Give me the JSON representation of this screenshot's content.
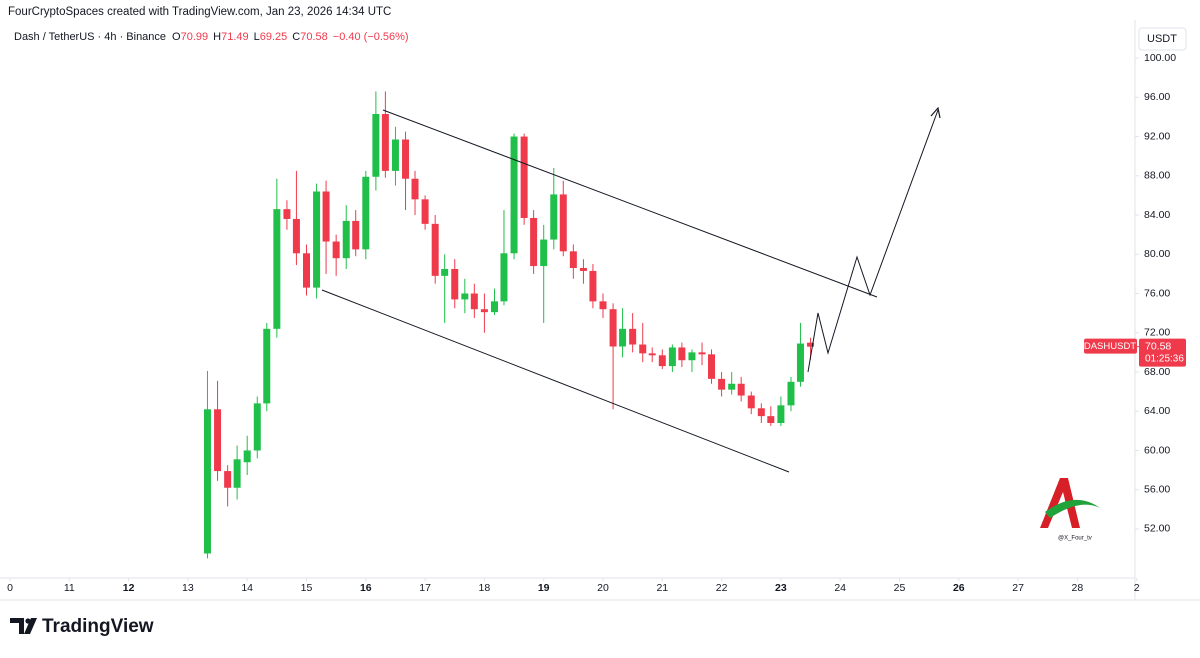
{
  "chart_data": {
    "type": "candlestick",
    "header": "FourCryptoSpaces created with TradingView.com, Jan 23, 2026 14:34 UTC",
    "symbol_title": "Dash / TetherUS · 4h · Binance",
    "legend": {
      "open_label": "O",
      "open": 70.99,
      "high_label": "H",
      "high": 71.49,
      "low_label": "L",
      "low": 69.25,
      "close_label": "C",
      "close": 70.58,
      "change": "−0.40 (−0.56%)"
    },
    "currency": "USDT",
    "symbol": "DASHUSDT",
    "last_price": 70.58,
    "countdown": "01:25:36",
    "watermark": "@X_Four_tv",
    "brand": "TradingView",
    "up_color": "#1fbf4a",
    "down_color": "#ef3a4c",
    "grid": false,
    "x": [
      13.33,
      13.5,
      13.67,
      13.83,
      14,
      14.17,
      14.33,
      14.5,
      14.67,
      14.83,
      15,
      15.17,
      15.33,
      15.5,
      15.67,
      15.83,
      16,
      16.17,
      16.33,
      16.5,
      16.67,
      16.83,
      17,
      17.17,
      17.33,
      17.5,
      17.67,
      17.83,
      18,
      18.17,
      18.33,
      18.5,
      18.67,
      18.83,
      19,
      19.17,
      19.33,
      19.5,
      19.67,
      19.83,
      20,
      20.17,
      20.33,
      20.5,
      20.67,
      20.83,
      21,
      21.17,
      21.33,
      21.5,
      21.67,
      21.83,
      22,
      22.17,
      22.33,
      22.5,
      22.67,
      22.83,
      23,
      23.17,
      23.33,
      23.5
    ],
    "open": [
      49.5,
      64.2,
      57.9,
      56.2,
      58.8,
      60.0,
      64.8,
      72.4,
      84.6,
      83.6,
      80.1,
      76.6,
      86.4,
      81.3,
      79.6,
      83.4,
      80.5,
      87.9,
      94.3,
      88.5,
      91.7,
      87.7,
      85.6,
      83.1,
      77.8,
      78.5,
      75.4,
      76.0,
      74.4,
      74.1,
      75.2,
      80.1,
      92.0,
      83.7,
      78.8,
      81.5,
      86.1,
      80.3,
      78.6,
      78.3,
      75.2,
      74.4,
      70.6,
      72.4,
      70.8,
      69.9,
      69.7,
      68.6,
      70.5,
      69.2,
      70.0,
      69.8,
      67.3,
      66.2,
      66.8,
      65.6,
      64.3,
      63.5,
      62.8,
      64.6,
      67.0,
      70.99
    ],
    "high": [
      68.1,
      67.1,
      58.5,
      60.5,
      61.5,
      65.5,
      73.0,
      87.7,
      85.5,
      88.5,
      81.0,
      87.2,
      87.5,
      82.0,
      85.0,
      84.5,
      88.5,
      96.6,
      96.6,
      93.0,
      92.5,
      88.5,
      86.0,
      84.0,
      80.0,
      79.5,
      77.5,
      77.0,
      76.0,
      76.5,
      84.5,
      92.3,
      92.3,
      84.5,
      83.0,
      88.8,
      87.5,
      81.0,
      79.5,
      79.0,
      76.0,
      75.0,
      74.5,
      74.0,
      73.0,
      70.5,
      70.3,
      70.8,
      71.0,
      70.3,
      71.0,
      70.3,
      68.0,
      68.0,
      67.5,
      66.0,
      64.8,
      64.5,
      65.5,
      67.5,
      73.0,
      71.49
    ],
    "low": [
      49.0,
      56.9,
      54.3,
      55.0,
      57.5,
      59.2,
      64.0,
      71.5,
      82.5,
      78.9,
      75.8,
      75.5,
      78.0,
      77.8,
      78.5,
      79.8,
      79.5,
      86.5,
      87.8,
      87.0,
      84.5,
      84.0,
      82.5,
      77.0,
      73.0,
      74.5,
      74.0,
      73.5,
      72.0,
      73.8,
      74.8,
      79.5,
      83.0,
      78.0,
      73.0,
      80.5,
      79.8,
      77.5,
      77.0,
      74.5,
      73.5,
      64.2,
      69.5,
      70.0,
      69.0,
      69.0,
      68.3,
      68.0,
      68.5,
      68.0,
      68.7,
      66.8,
      65.5,
      65.7,
      65.0,
      63.7,
      62.8,
      62.5,
      62.5,
      64.0,
      66.5,
      69.25
    ],
    "close": [
      64.2,
      57.9,
      56.2,
      59.1,
      60.0,
      64.8,
      72.4,
      84.6,
      83.6,
      80.1,
      76.6,
      86.4,
      81.3,
      79.6,
      83.4,
      80.5,
      87.9,
      94.3,
      88.5,
      91.7,
      87.7,
      85.6,
      83.1,
      77.8,
      78.5,
      75.4,
      76.0,
      74.4,
      74.1,
      75.2,
      80.1,
      92.0,
      83.7,
      78.8,
      81.5,
      86.1,
      80.3,
      78.6,
      78.3,
      75.2,
      74.4,
      70.6,
      72.4,
      70.8,
      69.9,
      69.7,
      68.6,
      70.5,
      69.2,
      70.0,
      69.8,
      67.3,
      66.2,
      66.8,
      65.6,
      64.3,
      63.5,
      62.8,
      64.6,
      67.0,
      70.9,
      70.58
    ],
    "xlim": [
      10,
      29
    ],
    "xticks": [
      {
        "value": 10,
        "label": "0"
      },
      11,
      12,
      13,
      14,
      15,
      16,
      17,
      18,
      19,
      20,
      21,
      22,
      23,
      24,
      25,
      26,
      27,
      28,
      {
        "value": 29,
        "label": "2"
      }
    ],
    "ylim": [
      47.0,
      105.2
    ],
    "yticks": [
      {
        "value": 52,
        "label": "52.00"
      },
      {
        "value": 56,
        "label": "56.00"
      },
      {
        "value": 60,
        "label": "60.00"
      },
      {
        "value": 64,
        "label": "64.00"
      },
      {
        "value": 68,
        "label": "68.00"
      },
      {
        "value": 72,
        "label": "72.00"
      },
      {
        "value": 76,
        "label": "76.00"
      },
      {
        "value": 80,
        "label": "80.00"
      },
      {
        "value": 84,
        "label": "84.00"
      },
      {
        "value": 88,
        "label": "88.00"
      },
      {
        "value": 92,
        "label": "92.00"
      },
      {
        "value": 96,
        "label": "96.00"
      },
      {
        "value": 100,
        "label": "100.00"
      }
    ]
  }
}
